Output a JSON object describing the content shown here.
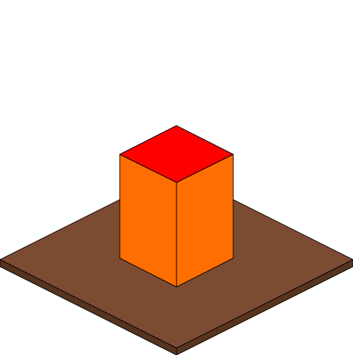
{
  "scene": {
    "type": "isometric-block-on-slab",
    "background_color": "#ffffff",
    "outline_color": "#000000",
    "base_slab": {
      "top_color": "#7b4c31",
      "side_color": "#58331d"
    },
    "block": {
      "top_color": "#ff0000",
      "left_face_color": "#ff6e00",
      "right_face_color": "#ff6e00"
    }
  }
}
